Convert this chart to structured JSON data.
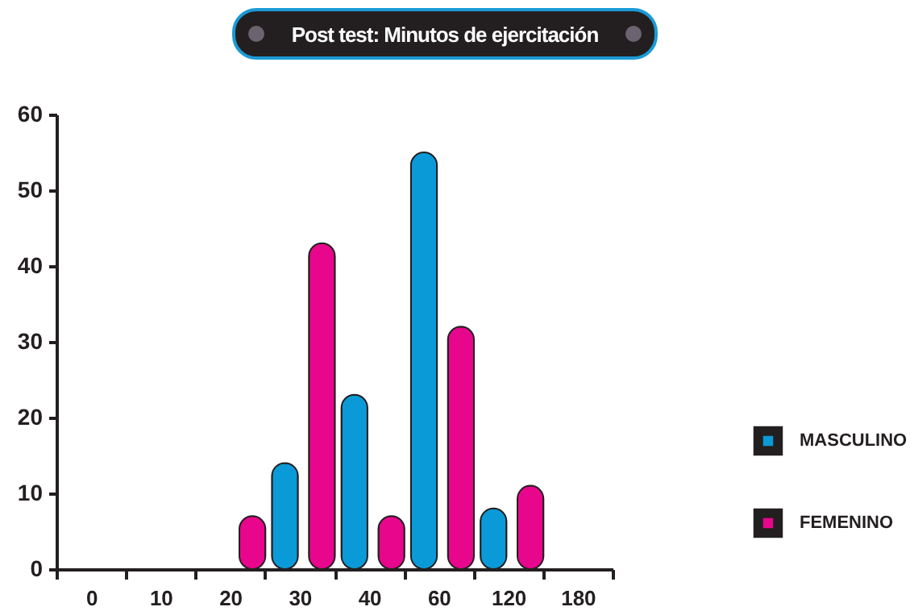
{
  "chart_data": {
    "type": "bar",
    "title": "Post test: Minutos de ejercitación",
    "categories": [
      "0",
      "10",
      "20",
      "30",
      "40",
      "60",
      "120",
      "180"
    ],
    "series": [
      {
        "name": "MASCULINO",
        "color": "#0a9ad8",
        "values": [
          null,
          null,
          null,
          14,
          23,
          55,
          8,
          null
        ]
      },
      {
        "name": "FEMENINO",
        "color": "#e8068c",
        "values": [
          null,
          null,
          7,
          43,
          7,
          32,
          11,
          null
        ]
      }
    ],
    "ylim": [
      0,
      60
    ],
    "yticks": [
      0,
      10,
      20,
      30,
      40,
      50,
      60
    ],
    "grid": false,
    "legend": "right"
  }
}
